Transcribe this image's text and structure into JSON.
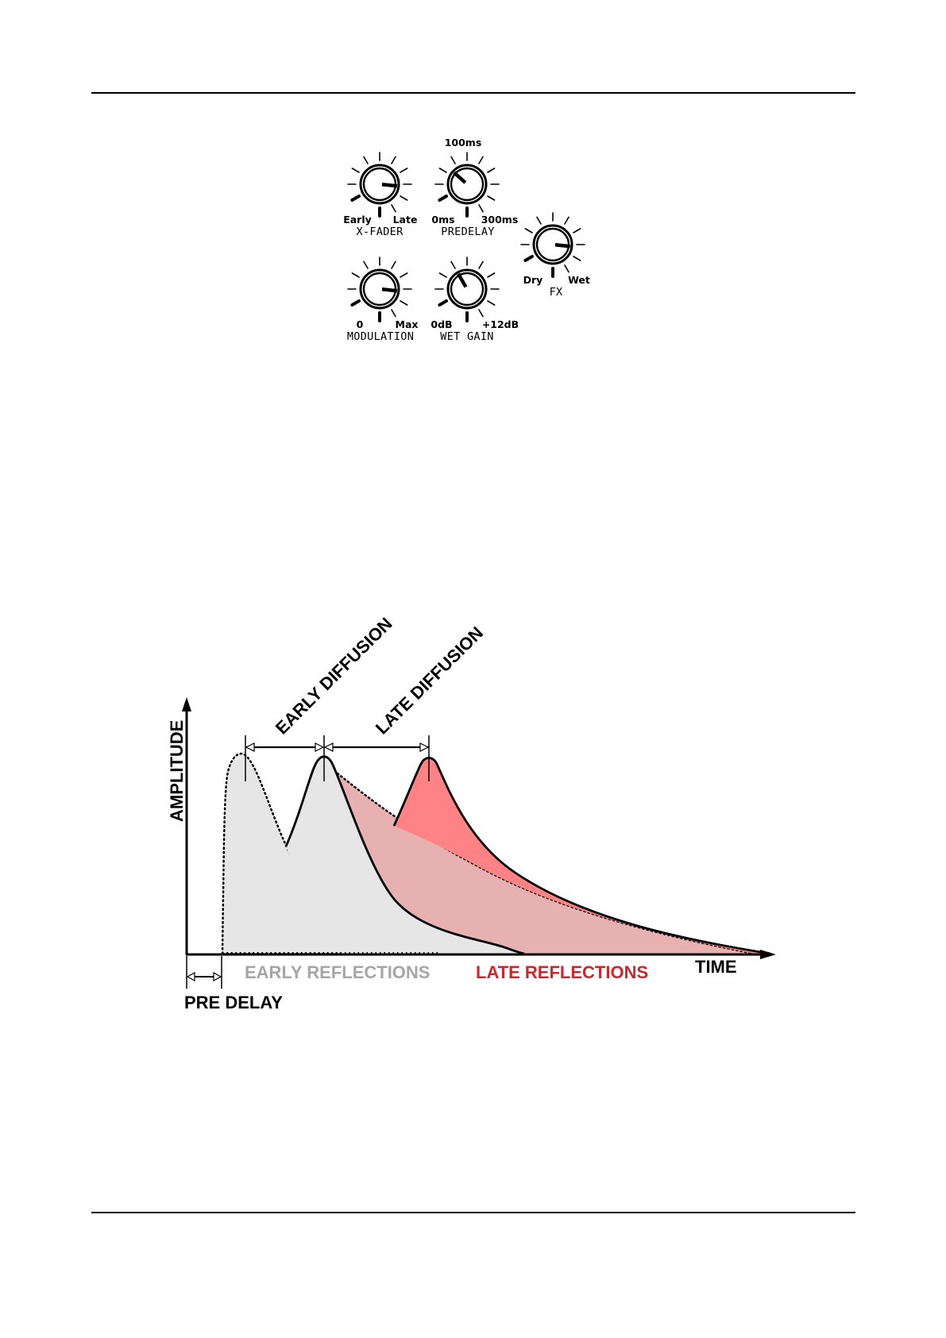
{
  "knob_panel": {
    "knobs": [
      {
        "id": "xfader",
        "name": "X-FADER",
        "left_label": "Early",
        "right_label": "Late",
        "top_label": "",
        "value": 0.72
      },
      {
        "id": "predelay",
        "name": "PREDELAY",
        "left_label": "0ms",
        "right_label": "300ms",
        "top_label": "100ms",
        "value": 0.24
      },
      {
        "id": "fx",
        "name": "FX",
        "left_label": "Dry",
        "right_label": "Wet",
        "top_label": "",
        "value": 0.72
      },
      {
        "id": "modulation",
        "name": "MODULATION",
        "left_label": "0",
        "right_label": "Max",
        "top_label": "",
        "value": 0.72
      },
      {
        "id": "wetgain",
        "name": "WET GAIN",
        "left_label": "0dB",
        "right_label": "+12dB",
        "top_label": "",
        "value": 0.3
      }
    ]
  },
  "diagram": {
    "y_axis_label": "AMPLITUDE",
    "x_axis_label": "TIME",
    "early_diffusion_label": "EARLY DIFFUSION",
    "late_diffusion_label": "LATE DIFFUSION",
    "early_reflections_label": "EARLY REFLECTIONS",
    "late_reflections_label": "LATE REFLECTIONS",
    "pre_delay_label": "PRE DELAY",
    "colors": {
      "early_fill": "#e6e6e6",
      "overlap_fill": "#e8b1b1",
      "late_fill": "#ff8384",
      "early_text": "#a6a6a6",
      "late_text": "#c9292c",
      "ink": "#000000"
    }
  }
}
